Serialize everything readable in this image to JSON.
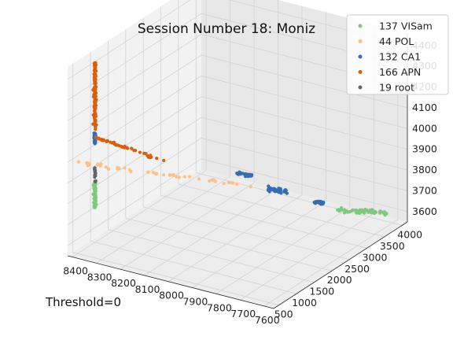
{
  "chart_data": {
    "type": "scatter",
    "projection": "3d",
    "title": "Session Number 18: Moniz",
    "footer": "Threshold=0",
    "xlabel": "",
    "ylabel": "",
    "zlabel": "",
    "x_ticks": [
      "7600",
      "7700",
      "7800",
      "7900",
      "8000",
      "8100",
      "8200",
      "8300",
      "8400"
    ],
    "y_ticks": [
      "500",
      "1000",
      "1500",
      "2000",
      "2500",
      "3000",
      "3500",
      "4000"
    ],
    "z_ticks": [
      "3600",
      "3700",
      "3800",
      "3900",
      "4000",
      "4100",
      "4200",
      "4300",
      "4400"
    ],
    "xlim": [
      7560,
      8420
    ],
    "ylim": [
      350,
      4150
    ],
    "zlim": [
      3550,
      4460
    ],
    "grid": true,
    "legend": "top-right",
    "series": [
      {
        "name": "137 VISam",
        "color": "#7fc97f",
        "count": 137
      },
      {
        "name": "44 POL",
        "color": "#fdc086",
        "count": 44
      },
      {
        "name": "132 CA1",
        "color": "#386cb0",
        "count": 132
      },
      {
        "name": "166 APN",
        "color": "#d95f0e",
        "count": 166
      },
      {
        "name": "19 root",
        "color": "#666666",
        "count": 19
      }
    ]
  }
}
